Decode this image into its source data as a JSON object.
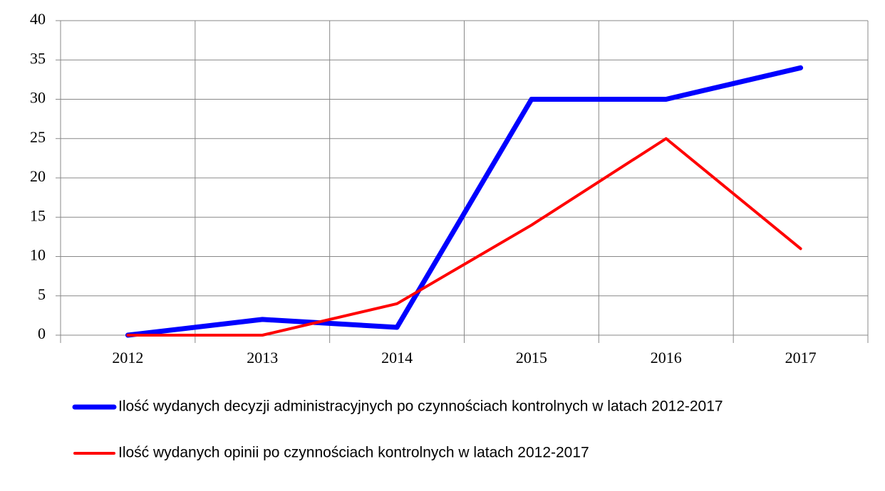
{
  "chart_data": {
    "type": "line",
    "categories": [
      "2012",
      "2013",
      "2014",
      "2015",
      "2016",
      "2017"
    ],
    "series": [
      {
        "name": "Ilość wydanych decyzji administracyjnych po czynnościach kontrolnych w latach 2012-2017",
        "color": "#0000ff",
        "values": [
          0,
          2,
          1,
          30,
          30,
          34
        ]
      },
      {
        "name": "Ilość wydanych opinii po czynnościach kontrolnych w latach 2012-2017",
        "color": "#ff0000",
        "values": [
          0,
          0,
          4,
          14,
          25,
          11
        ]
      }
    ],
    "ylim": [
      0,
      40
    ],
    "yticks": [
      0,
      5,
      10,
      15,
      20,
      25,
      30,
      35,
      40
    ],
    "grid": true,
    "legend": "bottom"
  }
}
